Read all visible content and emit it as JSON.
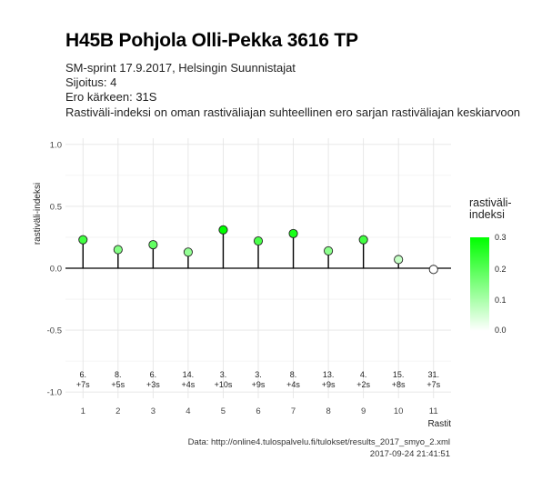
{
  "header": {
    "title": "H45B Pohjola Olli-Pekka 3616 TP",
    "subtitle_lines": [
      "SM-sprint 17.9.2017, Helsingin Suunnistajat",
      "Sijoitus: 4",
      "Ero kärkeen: 31S",
      "Rastiväli-indeksi on oman rastiväliajan suhteellinen ero sarjan rastiväliajan keskiarvoon"
    ]
  },
  "caption": {
    "line1": "Data: http://online4.tulospalvelu.fi/tulokset/results_2017_smyo_2.xml",
    "line2": "2017-09-24 21:41:51"
  },
  "legend": {
    "title_line1": "rastiväli-",
    "title_line2": "indeksi",
    "ticks": [
      "0.3",
      "0.2",
      "0.1",
      "0.0"
    ]
  },
  "colors": {
    "high": "#00ff00",
    "low": "#ffffff",
    "stem": "#000000",
    "grid": "#e5e5e5"
  },
  "chart_data": {
    "type": "scatter",
    "xlabel": "Rastit",
    "ylabel": "rastiväli-indeksi",
    "ylim": [
      -1.05,
      1.05
    ],
    "xlim": [
      0.5,
      11.5
    ],
    "y_ticks": [
      "1.0",
      "0.5",
      "0.0",
      "-0.5",
      "-1.0"
    ],
    "x": [
      1,
      2,
      3,
      4,
      5,
      6,
      7,
      8,
      9,
      10,
      11
    ],
    "values": [
      0.23,
      0.15,
      0.19,
      0.13,
      0.31,
      0.22,
      0.28,
      0.14,
      0.23,
      0.07,
      -0.01
    ],
    "rank_labels": [
      "6.",
      "8.",
      "6.",
      "14.",
      "3.",
      "3.",
      "8.",
      "13.",
      "4.",
      "15.",
      "31."
    ],
    "diff_labels": [
      "+7s",
      "+5s",
      "+3s",
      "+4s",
      "+10s",
      "+9s",
      "+4s",
      "+9s",
      "+2s",
      "+8s",
      "+7s"
    ],
    "color_scale": [
      0,
      0.31
    ],
    "grid": true,
    "legend_position": "right"
  }
}
